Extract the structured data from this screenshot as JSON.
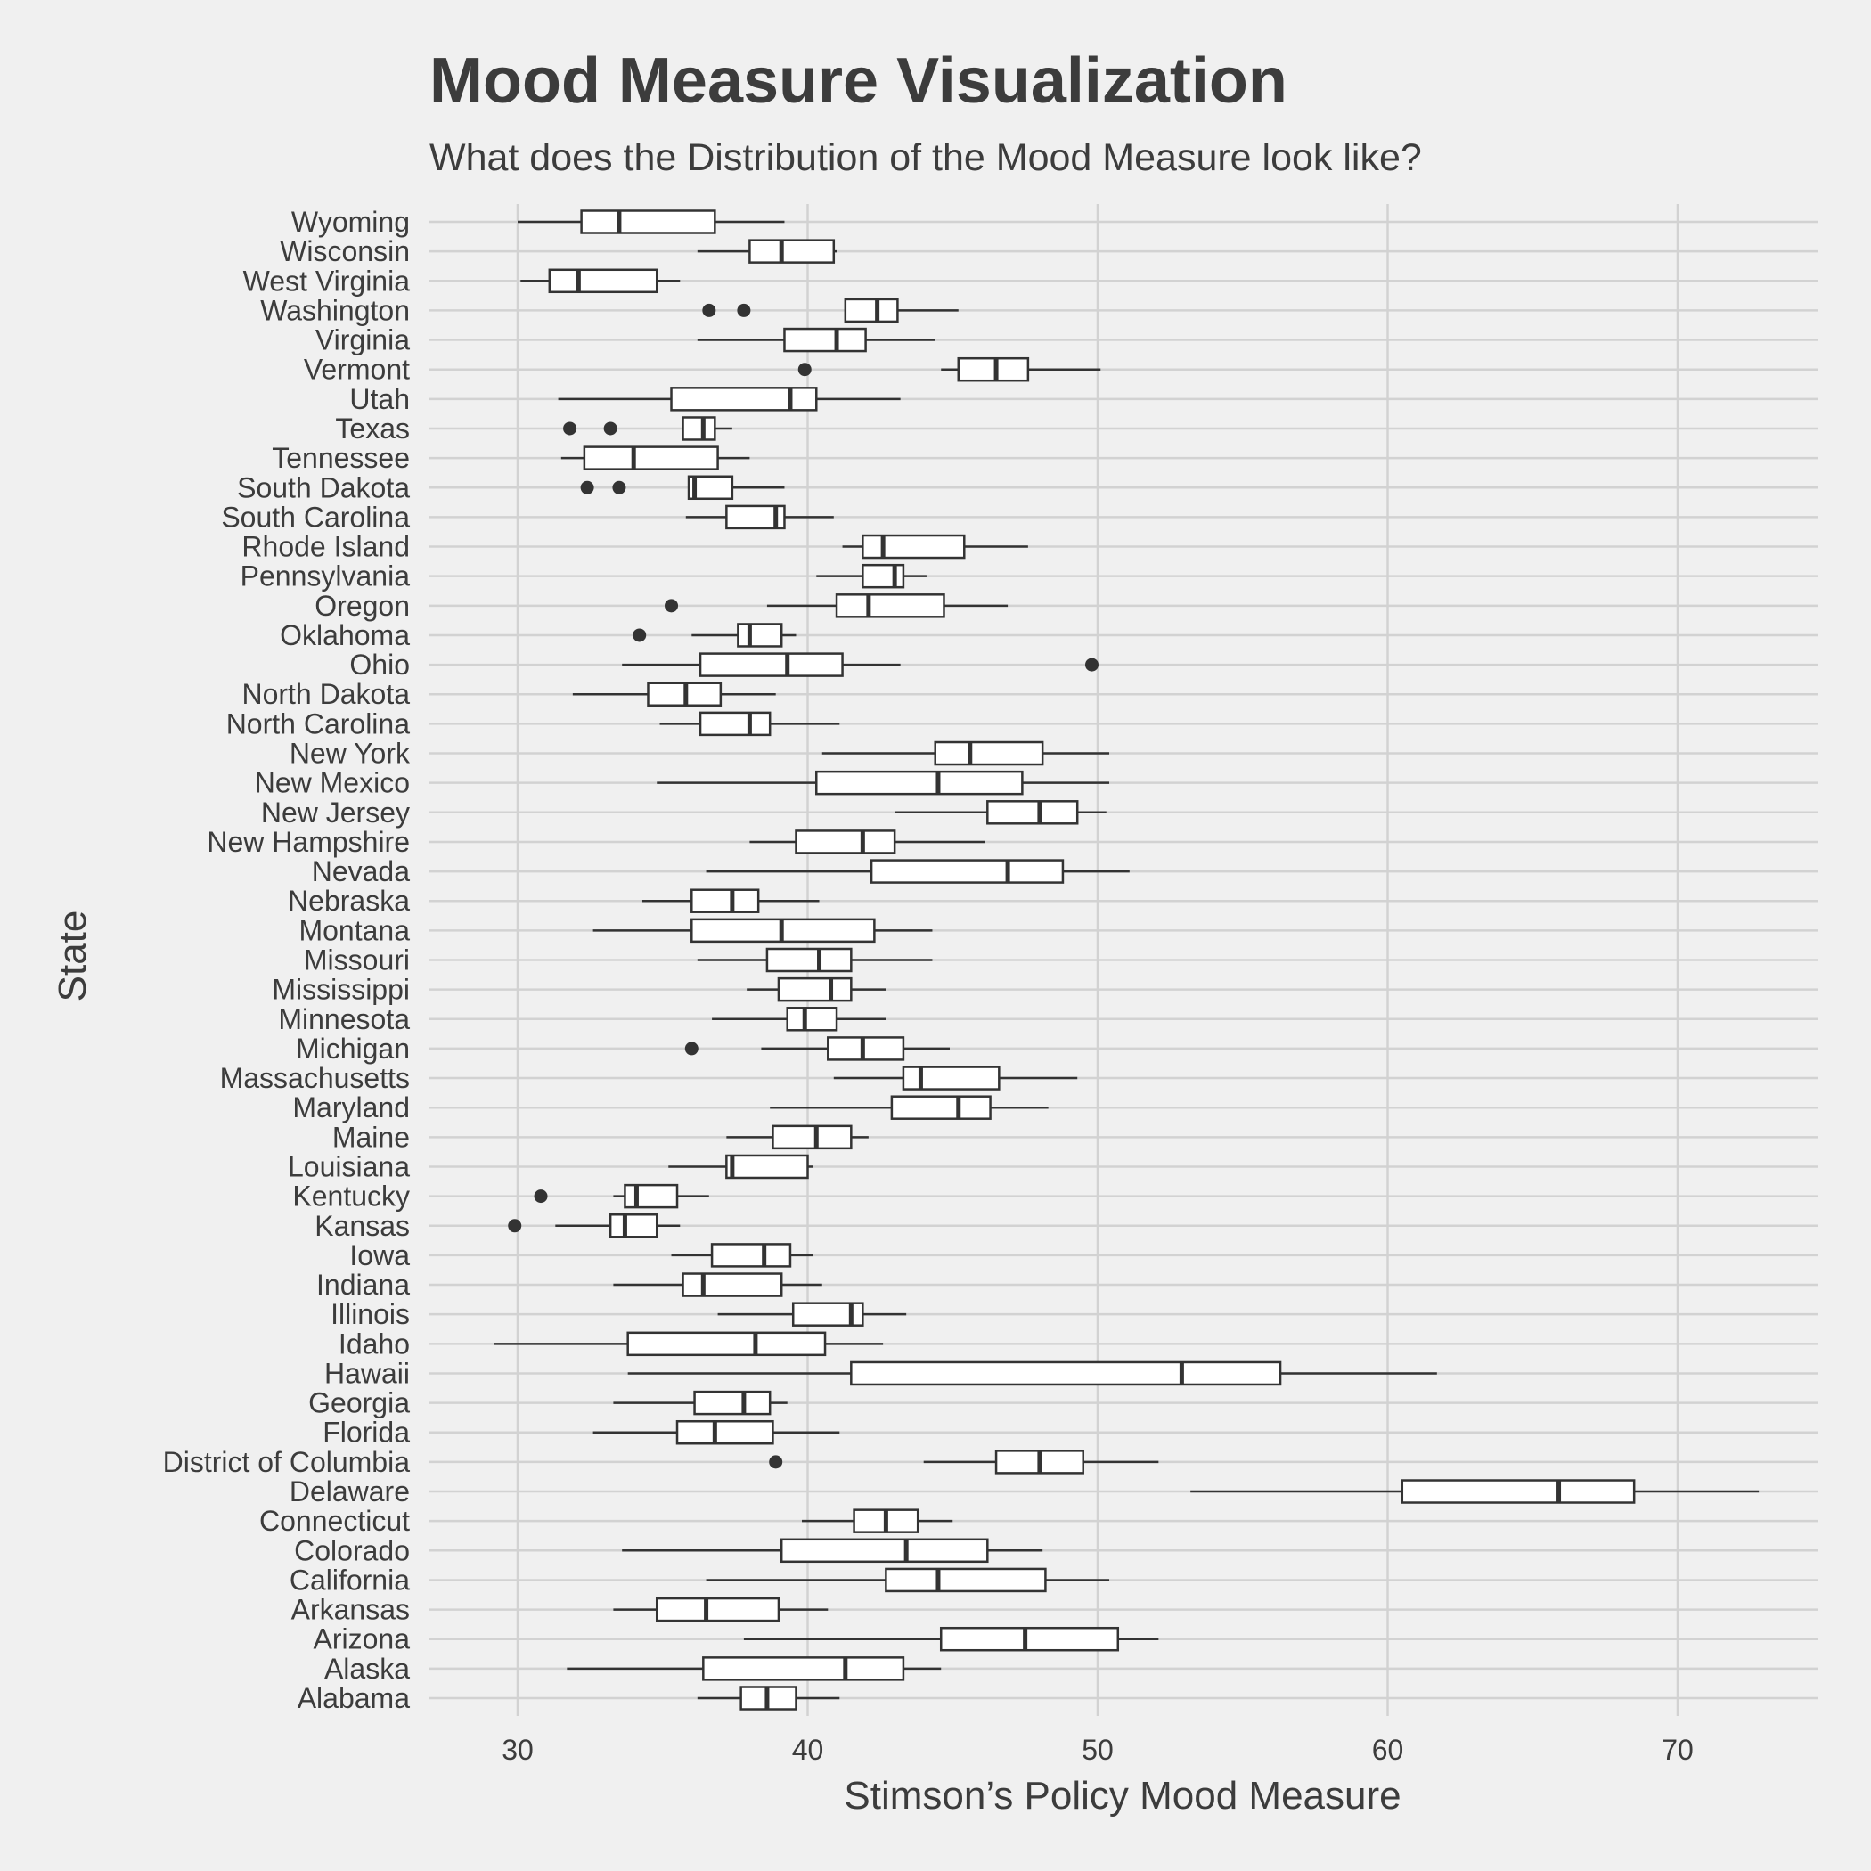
{
  "chart_data": {
    "type": "boxplot",
    "orientation": "horizontal",
    "title": "Mood Measure Visualization",
    "subtitle": "What does the Distribution of the Mood Measure look like?",
    "xlabel": "Stimson’s Policy Mood Measure",
    "ylabel": "State",
    "xlim": [
      27,
      75
    ],
    "x_ticks": [
      30,
      40,
      50,
      60,
      70
    ],
    "grid": true,
    "colors": {
      "background": "#f0f0f0",
      "grid": "#d2d2d2",
      "box_stroke": "#333333",
      "box_fill": "#ffffff",
      "text": "#3c3c3c"
    },
    "boxes": [
      {
        "category": "Wyoming",
        "min": 30.0,
        "q1": 32.2,
        "median": 33.5,
        "q3": 36.8,
        "max": 39.2,
        "outliers": []
      },
      {
        "category": "Wisconsin",
        "min": 36.2,
        "q1": 38.0,
        "median": 39.1,
        "q3": 40.9,
        "max": 41.0,
        "outliers": []
      },
      {
        "category": "West Virginia",
        "min": 30.1,
        "q1": 31.1,
        "median": 32.1,
        "q3": 34.8,
        "max": 35.6,
        "outliers": []
      },
      {
        "category": "Washington",
        "min": 41.3,
        "q1": 41.3,
        "median": 42.4,
        "q3": 43.1,
        "max": 45.2,
        "outliers": [
          36.6,
          37.8
        ]
      },
      {
        "category": "Virginia",
        "min": 36.2,
        "q1": 39.2,
        "median": 41.0,
        "q3": 42.0,
        "max": 44.4,
        "outliers": []
      },
      {
        "category": "Vermont",
        "min": 44.6,
        "q1": 45.2,
        "median": 46.5,
        "q3": 47.6,
        "max": 50.1,
        "outliers": [
          39.9
        ]
      },
      {
        "category": "Utah",
        "min": 31.4,
        "q1": 35.3,
        "median": 39.4,
        "q3": 40.3,
        "max": 43.2,
        "outliers": []
      },
      {
        "category": "Texas",
        "min": 35.7,
        "q1": 35.7,
        "median": 36.4,
        "q3": 36.8,
        "max": 37.4,
        "outliers": [
          31.8,
          33.2
        ]
      },
      {
        "category": "Tennessee",
        "min": 31.5,
        "q1": 32.3,
        "median": 34.0,
        "q3": 36.9,
        "max": 38.0,
        "outliers": []
      },
      {
        "category": "South Dakota",
        "min": 35.9,
        "q1": 35.9,
        "median": 36.1,
        "q3": 37.4,
        "max": 39.2,
        "outliers": [
          32.4,
          33.5
        ]
      },
      {
        "category": "South Carolina",
        "min": 35.8,
        "q1": 37.2,
        "median": 38.9,
        "q3": 39.2,
        "max": 40.9,
        "outliers": []
      },
      {
        "category": "Rhode Island",
        "min": 41.2,
        "q1": 41.9,
        "median": 42.6,
        "q3": 45.4,
        "max": 47.6,
        "outliers": []
      },
      {
        "category": "Pennsylvania",
        "min": 40.3,
        "q1": 41.9,
        "median": 43.0,
        "q3": 43.3,
        "max": 44.1,
        "outliers": []
      },
      {
        "category": "Oregon",
        "min": 38.6,
        "q1": 41.0,
        "median": 42.1,
        "q3": 44.7,
        "max": 46.9,
        "outliers": [
          35.3
        ]
      },
      {
        "category": "Oklahoma",
        "min": 36.0,
        "q1": 37.6,
        "median": 38.0,
        "q3": 39.1,
        "max": 39.6,
        "outliers": [
          34.2
        ]
      },
      {
        "category": "Ohio",
        "min": 33.6,
        "q1": 36.3,
        "median": 39.3,
        "q3": 41.2,
        "max": 43.2,
        "outliers": [
          49.8
        ]
      },
      {
        "category": "North Dakota",
        "min": 31.9,
        "q1": 34.5,
        "median": 35.8,
        "q3": 37.0,
        "max": 38.9,
        "outliers": []
      },
      {
        "category": "North Carolina",
        "min": 34.9,
        "q1": 36.3,
        "median": 38.0,
        "q3": 38.7,
        "max": 41.1,
        "outliers": []
      },
      {
        "category": "New York",
        "min": 40.5,
        "q1": 44.4,
        "median": 45.6,
        "q3": 48.1,
        "max": 50.4,
        "outliers": []
      },
      {
        "category": "New Mexico",
        "min": 34.8,
        "q1": 40.3,
        "median": 44.5,
        "q3": 47.4,
        "max": 50.4,
        "outliers": []
      },
      {
        "category": "New Jersey",
        "min": 43.0,
        "q1": 46.2,
        "median": 48.0,
        "q3": 49.3,
        "max": 50.3,
        "outliers": []
      },
      {
        "category": "New Hampshire",
        "min": 38.0,
        "q1": 39.6,
        "median": 41.9,
        "q3": 43.0,
        "max": 46.1,
        "outliers": []
      },
      {
        "category": "Nevada",
        "min": 36.5,
        "q1": 42.2,
        "median": 46.9,
        "q3": 48.8,
        "max": 51.1,
        "outliers": []
      },
      {
        "category": "Nebraska",
        "min": 34.3,
        "q1": 36.0,
        "median": 37.4,
        "q3": 38.3,
        "max": 40.4,
        "outliers": []
      },
      {
        "category": "Montana",
        "min": 32.6,
        "q1": 36.0,
        "median": 39.1,
        "q3": 42.3,
        "max": 44.3,
        "outliers": []
      },
      {
        "category": "Missouri",
        "min": 36.2,
        "q1": 38.6,
        "median": 40.4,
        "q3": 41.5,
        "max": 44.3,
        "outliers": []
      },
      {
        "category": "Mississippi",
        "min": 37.9,
        "q1": 39.0,
        "median": 40.8,
        "q3": 41.5,
        "max": 42.7,
        "outliers": []
      },
      {
        "category": "Minnesota",
        "min": 36.7,
        "q1": 39.3,
        "median": 39.9,
        "q3": 41.0,
        "max": 42.7,
        "outliers": []
      },
      {
        "category": "Michigan",
        "min": 38.4,
        "q1": 40.7,
        "median": 41.9,
        "q3": 43.3,
        "max": 44.9,
        "outliers": [
          36.0
        ]
      },
      {
        "category": "Massachusetts",
        "min": 40.9,
        "q1": 43.3,
        "median": 43.9,
        "q3": 46.6,
        "max": 49.3,
        "outliers": []
      },
      {
        "category": "Maryland",
        "min": 38.7,
        "q1": 42.9,
        "median": 45.2,
        "q3": 46.3,
        "max": 48.3,
        "outliers": []
      },
      {
        "category": "Maine",
        "min": 37.2,
        "q1": 38.8,
        "median": 40.3,
        "q3": 41.5,
        "max": 42.1,
        "outliers": []
      },
      {
        "category": "Louisiana",
        "min": 35.2,
        "q1": 37.2,
        "median": 37.4,
        "q3": 40.0,
        "max": 40.2,
        "outliers": []
      },
      {
        "category": "Kentucky",
        "min": 33.3,
        "q1": 33.7,
        "median": 34.1,
        "q3": 35.5,
        "max": 36.6,
        "outliers": [
          30.8
        ]
      },
      {
        "category": "Kansas",
        "min": 31.3,
        "q1": 33.2,
        "median": 33.7,
        "q3": 34.8,
        "max": 35.6,
        "outliers": [
          29.9
        ]
      },
      {
        "category": "Iowa",
        "min": 35.3,
        "q1": 36.7,
        "median": 38.5,
        "q3": 39.4,
        "max": 40.2,
        "outliers": []
      },
      {
        "category": "Indiana",
        "min": 33.3,
        "q1": 35.7,
        "median": 36.4,
        "q3": 39.1,
        "max": 40.5,
        "outliers": []
      },
      {
        "category": "Illinois",
        "min": 36.9,
        "q1": 39.5,
        "median": 41.5,
        "q3": 41.9,
        "max": 43.4,
        "outliers": []
      },
      {
        "category": "Idaho",
        "min": 29.2,
        "q1": 33.8,
        "median": 38.2,
        "q3": 40.6,
        "max": 42.6,
        "outliers": []
      },
      {
        "category": "Hawaii",
        "min": 33.8,
        "q1": 41.5,
        "median": 52.9,
        "q3": 56.3,
        "max": 61.7,
        "outliers": []
      },
      {
        "category": "Georgia",
        "min": 33.3,
        "q1": 36.1,
        "median": 37.8,
        "q3": 38.7,
        "max": 39.3,
        "outliers": []
      },
      {
        "category": "Florida",
        "min": 32.6,
        "q1": 35.5,
        "median": 36.8,
        "q3": 38.8,
        "max": 41.1,
        "outliers": []
      },
      {
        "category": "District of Columbia",
        "min": 44.0,
        "q1": 46.5,
        "median": 48.0,
        "q3": 49.5,
        "max": 52.1,
        "outliers": [
          38.9
        ]
      },
      {
        "category": "Delaware",
        "min": 53.2,
        "q1": 60.5,
        "median": 65.9,
        "q3": 68.5,
        "max": 72.8,
        "outliers": []
      },
      {
        "category": "Connecticut",
        "min": 39.8,
        "q1": 41.6,
        "median": 42.7,
        "q3": 43.8,
        "max": 45.0,
        "outliers": []
      },
      {
        "category": "Colorado",
        "min": 33.6,
        "q1": 39.1,
        "median": 43.4,
        "q3": 46.2,
        "max": 48.1,
        "outliers": []
      },
      {
        "category": "California",
        "min": 36.5,
        "q1": 42.7,
        "median": 44.5,
        "q3": 48.2,
        "max": 50.4,
        "outliers": []
      },
      {
        "category": "Arkansas",
        "min": 33.3,
        "q1": 34.8,
        "median": 36.5,
        "q3": 39.0,
        "max": 40.7,
        "outliers": []
      },
      {
        "category": "Arizona",
        "min": 37.8,
        "q1": 44.6,
        "median": 47.5,
        "q3": 50.7,
        "max": 52.1,
        "outliers": []
      },
      {
        "category": "Alaska",
        "min": 31.7,
        "q1": 36.4,
        "median": 41.3,
        "q3": 43.3,
        "max": 44.6,
        "outliers": []
      },
      {
        "category": "Alabama",
        "min": 36.2,
        "q1": 37.7,
        "median": 38.6,
        "q3": 39.6,
        "max": 41.1,
        "outliers": []
      }
    ]
  }
}
